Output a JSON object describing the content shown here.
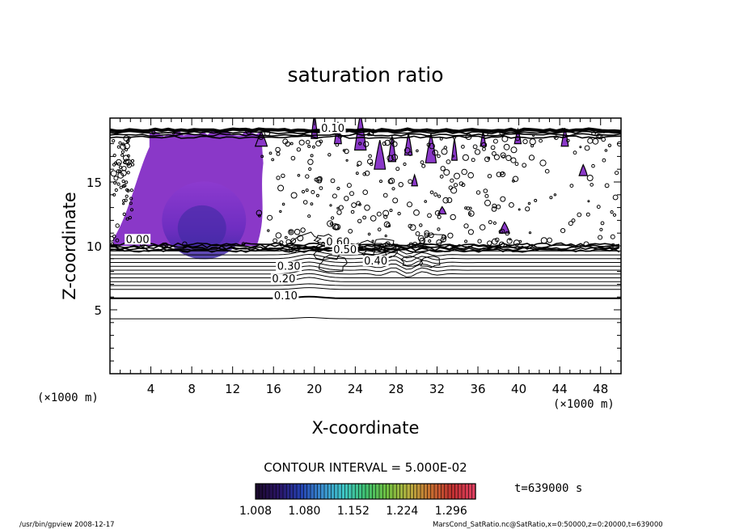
{
  "chart_data": {
    "type": "heatmap",
    "title": "saturation ratio",
    "xlabel": "X-coordinate",
    "ylabel": "Z-coordinate",
    "x_unit_left": "(×1000 m)",
    "x_unit_right": "(×1000 m)",
    "xlim": [
      0,
      50
    ],
    "ylim": [
      0,
      20
    ],
    "xticks": [
      4,
      8,
      12,
      16,
      20,
      24,
      28,
      32,
      36,
      40,
      44,
      48
    ],
    "yticks": [
      5,
      10,
      15
    ],
    "contour_interval_text": "CONTOUR INTERVAL = 5.000E-02",
    "time_text": "t=639000 s",
    "colorbar": {
      "min": 1.008,
      "max": 1.332,
      "tick_values": [
        1.008,
        1.08,
        1.152,
        1.224,
        1.296
      ],
      "tick_labels": [
        "1.008",
        "1.080",
        "1.152",
        "1.224",
        "1.296"
      ],
      "colors": [
        "#1b0a2e",
        "#2a1466",
        "#2440b0",
        "#3a8fd0",
        "#3fc8c8",
        "#3fc070",
        "#70c040",
        "#b8b040",
        "#c87030",
        "#c03030",
        "#e04060"
      ]
    },
    "saturated_region": {
      "x": [
        0.3,
        15.0
      ],
      "z": [
        10.0,
        19.0
      ],
      "color": "#8a38c8",
      "core_color": "#3a2aa0"
    },
    "contour_labels": [
      {
        "text": "0.10",
        "x": 21.8,
        "z": 19.0
      },
      {
        "text": "0.00",
        "x": 2.7,
        "z": 10.3
      },
      {
        "text": "0.60",
        "x": 22.3,
        "z": 10.1
      },
      {
        "text": "0.50",
        "x": 23.0,
        "z": 9.5
      },
      {
        "text": "0.40",
        "x": 26.0,
        "z": 8.6
      },
      {
        "text": "0.30",
        "x": 17.5,
        "z": 8.2
      },
      {
        "text": "0.20",
        "x": 17.0,
        "z": 7.2
      },
      {
        "text": "0.10",
        "x": 17.2,
        "z": 5.9
      }
    ],
    "grid": false
  },
  "footer": {
    "program": "/usr/bin/gpview   2008-12-17",
    "source": "MarsCond_SatRatio.nc@SatRatio,x=0:50000,z=0:20000,t=639000"
  }
}
